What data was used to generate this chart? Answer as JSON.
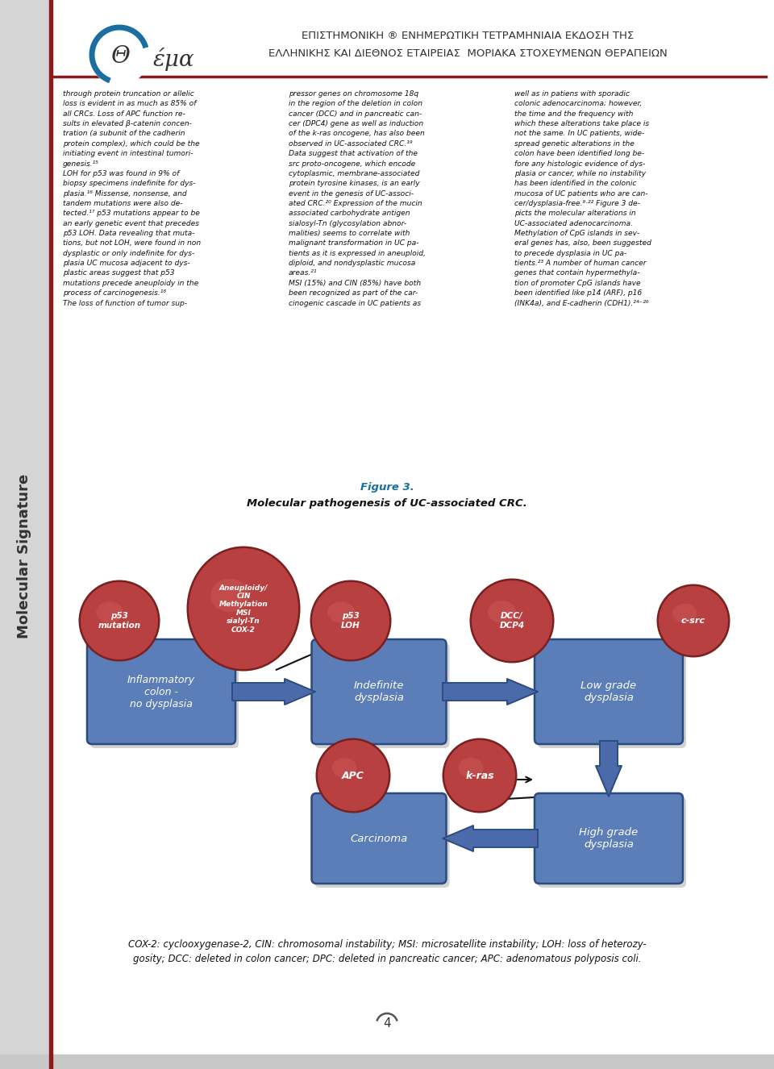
{
  "page_bg": "#ffffff",
  "sidebar_bg": "#d5d5d5",
  "sidebar_text": "Molecular Signature",
  "header_greek1": "ΕΠΙΣΤΗΜΟΝΙΚΗ ® ΕΝΗΜΕΡΩΤΙΚΗ ΤΕΤΡΑΜΗΝΙΑΙΑ ΕΚΔΟΣΗ ΤΗΣ",
  "header_greek2": "ΕΛΛΗΝΙΚΗΣ ΚΑΙ ΔΙΕΘΝΟΣ ΕΤΑΙΡΕΙΑΣ  ΜΟΡΙΑΚΑ ΣΤΟΧΕΥΜΕΝΩΝ ΘΕΡΑΠΕΙΩΝ",
  "col1": "through protein truncation or allelic\nloss is evident in as much as 85% of\nall CRCs. Loss of APC function re-\nsults in elevated β-catenin concen-\ntration (a subunit of the cadherin\nprotein complex), which could be the\ninitiating event in intestinal tumori-\ngenesis.¹⁵\nLOH for p53 was found in 9% of\nbiopsy specimens indefinite for dys-\nplasia.¹⁶ Missense, nonsense, and\ntandem mutations were also de-\ntected.¹⁷ p53 mutations appear to be\nan early genetic event that precedes\np53 LOH. Data revealing that muta-\ntions, but not LOH, were found in non\ndysplastic or only indefinite for dys-\nplasia UC mucosa adjacent to dys-\nplastic areas suggest that p53\nmutations precede aneuploidy in the\nprocess of carcinogenesis.¹⁸\nThe loss of function of tumor sup-",
  "col2": "pressor genes on chromosome 18q\nin the region of the deletion in colon\ncancer (DCC) and in pancreatic can-\ncer (DPC4) gene as well as induction\nof the k-ras oncogene, has also been\nobserved in UC-associated CRC.¹⁹\nData suggest that activation of the\nsrc proto-oncogene, which encode\ncytoplasmic, membrane-associated\nprotein tyrosine kinases, is an early\nevent in the genesis of UC-associ-\nated CRC.²⁰ Expression of the mucin\nassociated carbohydrate antigen\nsialosyl-Tn (glycosylation abnor-\nmalities) seems to correlate with\nmalignant transformation in UC pa-\ntients as it is expressed in aneuploid,\ndiploid, and nondysplastic mucosa\nareas.²¹\nMSI (15%) and CIN (85%) have both\nbeen recognized as part of the car-\ncinogenic cascade in UC patients as",
  "col3": "well as in patiens with sporadic\ncolonic adenocarcinoma; however,\nthe time and the frequency with\nwhich these alterations take place is\nnot the same. In UC patients, wide-\nspread genetic alterations in the\ncolon have been identified long be-\nfore any histologic evidence of dys-\nplasia or cancer, while no instability\nhas been identified in the colonic\nmucosa of UC patients who are can-\ncer/dysplasia-free.⁹·²² Figure 3 de-\npicts the molecular alterations in\nUC-associated adenocarcinoma.\nMethylation of CpG islands in sev-\neral genes has, also, been suggested\nto precede dysplasia in UC pa-\ntients.²³ A number of human cancer\ngenes that contain hypermethyla-\ntion of promoter CpG islands have\nbeen identified like p14 (ARF), p16\n(INK4a), and E-cadherin (CDH1).²⁴⁻²⁶",
  "fig_caption1": "Figure 3.",
  "fig_caption2": "Molecular pathogenesis of UC-associated CRC.",
  "footer": "COX-2: cyclooxygenase-2, CIN: chromosomal instability; MSI: microsatellite instability; LOH: loss of heterozy-\ngosity; DCC: deleted in colon cancer; DPC: deleted in pancreatic cancer; APC: adenomatous polyposis coli.",
  "page_num": "4",
  "box_blue": "#5b7db8",
  "box_border": "#2a4a80",
  "circle_red": "#b84040",
  "circle_border": "#7a2020",
  "arrow_blue": "#4a6aaa",
  "arrow_border": "#2a4a80",
  "red_line": "#8B1A1A",
  "shadow": "#808080"
}
